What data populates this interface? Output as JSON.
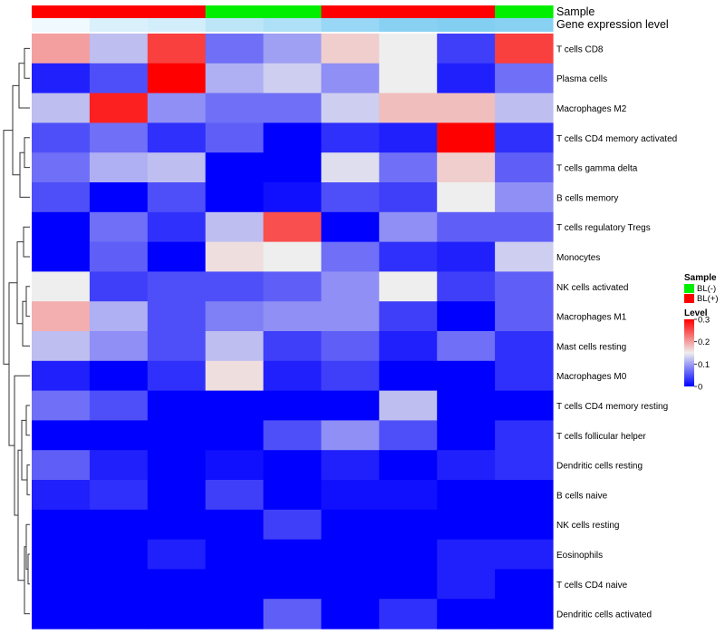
{
  "chart_data": {
    "type": "heatmap",
    "annotation_labels": [
      "Sample",
      "Gene expression level"
    ],
    "rows": [
      "T cells CD8",
      "Plasma cells",
      "Macrophages M2",
      "T cells CD4 memory activated",
      "T cells gamma delta",
      "B cells memory",
      "T cells regulatory  Tregs",
      "Monocytes",
      "NK cells activated",
      "Macrophages M1",
      "Mast cells resting",
      "Macrophages M0",
      "T cells CD4 memory resting",
      "T cells follicular helper",
      "Dendritic cells resting",
      "B cells naive",
      "NK cells resting",
      "Eosinophils",
      "T cells CD4 naive",
      "Dendritic cells activated"
    ],
    "sample_groups": [
      "BL(+)",
      "BL(+)",
      "BL(+)",
      "BL(-)",
      "BL(-)",
      "BL(+)",
      "BL(+)",
      "BL(+)",
      "BL(-)"
    ],
    "expression_level": [
      0.1,
      0.25,
      0.3,
      0.45,
      0.55,
      0.7,
      0.8,
      0.85,
      0.8
    ],
    "values": [
      [
        0.2,
        0.12,
        0.26,
        0.07,
        0.1,
        0.17,
        0.15,
        0.04,
        0.26
      ],
      [
        0.02,
        0.05,
        0.3,
        0.11,
        0.13,
        0.09,
        0.15,
        0.02,
        0.07
      ],
      [
        0.12,
        0.28,
        0.09,
        0.07,
        0.07,
        0.13,
        0.18,
        0.18,
        0.12
      ],
      [
        0.05,
        0.07,
        0.03,
        0.06,
        0.0,
        0.03,
        0.02,
        0.3,
        0.03
      ],
      [
        0.07,
        0.11,
        0.12,
        0.0,
        0.0,
        0.14,
        0.07,
        0.17,
        0.06
      ],
      [
        0.05,
        0.0,
        0.05,
        0.0,
        0.01,
        0.05,
        0.04,
        0.15,
        0.09
      ],
      [
        0.0,
        0.07,
        0.03,
        0.12,
        0.25,
        0.0,
        0.09,
        0.06,
        0.06
      ],
      [
        0.0,
        0.06,
        0.0,
        0.16,
        0.15,
        0.07,
        0.03,
        0.02,
        0.13
      ],
      [
        0.15,
        0.04,
        0.05,
        0.05,
        0.06,
        0.09,
        0.15,
        0.04,
        0.06
      ],
      [
        0.19,
        0.11,
        0.05,
        0.08,
        0.09,
        0.09,
        0.04,
        0.0,
        0.06
      ],
      [
        0.12,
        0.09,
        0.05,
        0.12,
        0.04,
        0.06,
        0.02,
        0.07,
        0.03
      ],
      [
        0.02,
        0.0,
        0.03,
        0.16,
        0.02,
        0.04,
        0.0,
        0.0,
        0.03
      ],
      [
        0.07,
        0.05,
        0.0,
        0.0,
        0.0,
        0.0,
        0.12,
        0.0,
        0.0
      ],
      [
        0.0,
        0.0,
        0.0,
        0.0,
        0.05,
        0.09,
        0.05,
        0.0,
        0.03
      ],
      [
        0.06,
        0.02,
        0.0,
        0.01,
        0.0,
        0.02,
        0.0,
        0.02,
        0.03
      ],
      [
        0.02,
        0.03,
        0.0,
        0.04,
        0.0,
        0.01,
        0.01,
        0.0,
        0.0
      ],
      [
        0.0,
        0.0,
        0.0,
        0.0,
        0.04,
        0.0,
        0.0,
        0.0,
        0.0
      ],
      [
        0.0,
        0.0,
        0.02,
        0.0,
        0.0,
        0.0,
        0.0,
        0.02,
        0.02
      ],
      [
        0.0,
        0.0,
        0.0,
        0.0,
        0.0,
        0.0,
        0.0,
        0.02,
        0.0
      ],
      [
        0.0,
        0.0,
        0.0,
        0.0,
        0.06,
        0.0,
        0.03,
        0.0,
        0.0
      ]
    ],
    "color_scale": {
      "min": 0,
      "mid": 0.15,
      "max": 0.3,
      "low_color": "#0000ff",
      "mid_color": "#eeeeee",
      "high_color": "#ff0000"
    },
    "legend": {
      "sample_title": "Sample",
      "sample_entries": [
        {
          "label": "BL(-)",
          "color": "#00ee00"
        },
        {
          "label": "BL(+)",
          "color": "#ff0000"
        }
      ],
      "level_title": "Level",
      "level_ticks": [
        "0.3",
        "0.2",
        "0.1",
        "0"
      ]
    },
    "expression_colors": {
      "low": "#ffffff",
      "high": "#6cc6f0"
    },
    "dendrogram": "left"
  }
}
